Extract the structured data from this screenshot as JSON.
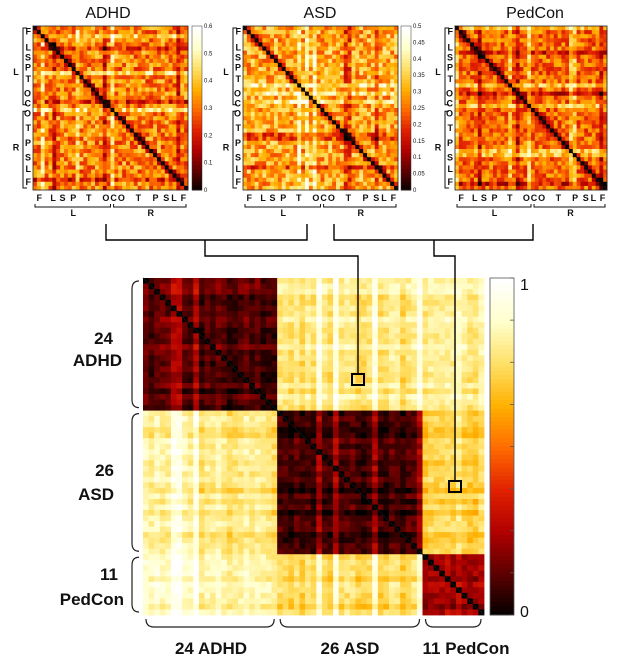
{
  "chart_data": [
    {
      "type": "heatmap",
      "title": "ADHD",
      "row_labels_left": [
        "F",
        "L",
        "S",
        "P",
        "T",
        "O",
        "C",
        "O",
        "T",
        "P",
        "S",
        "L",
        "F"
      ],
      "hemisphere_labels": [
        "L",
        "R"
      ],
      "x_tick_labels": [
        "F",
        "L",
        "S",
        "P",
        "T",
        "O",
        "C",
        "O",
        "T",
        "P",
        "S",
        "L",
        "F"
      ],
      "colorbar_ticks": [
        "0.6",
        "0.5",
        "0.4",
        "0.3",
        "0.2",
        "0.1",
        "0"
      ],
      "vmin": 0,
      "vmax": 0.6
    },
    {
      "type": "heatmap",
      "title": "ASD",
      "row_labels_left": [
        "F",
        "L",
        "S",
        "P",
        "T",
        "O",
        "C",
        "O",
        "T",
        "P",
        "S",
        "L",
        "F"
      ],
      "hemisphere_labels": [
        "L",
        "R"
      ],
      "x_tick_labels": [
        "F",
        "L",
        "S",
        "P",
        "T",
        "O",
        "C",
        "O",
        "T",
        "P",
        "S",
        "L",
        "F"
      ],
      "colorbar_ticks": [
        "0.5",
        "0.45",
        "0.4",
        "0.35",
        "0.3",
        "0.25",
        "0.2",
        "0.15",
        "0.1",
        "0.05",
        "0"
      ],
      "vmin": 0,
      "vmax": 0.5
    },
    {
      "type": "heatmap",
      "title": "PedCon",
      "row_labels_left": [
        "F",
        "L",
        "S",
        "P",
        "T",
        "O",
        "C",
        "O",
        "T",
        "P",
        "S",
        "L",
        "F"
      ],
      "hemisphere_labels": [
        "L",
        "R"
      ],
      "x_tick_labels": [
        "F",
        "L",
        "S",
        "P",
        "T",
        "O",
        "C",
        "O",
        "T",
        "P",
        "S",
        "L",
        "F"
      ],
      "colorbar_ticks": [],
      "vmin": 0,
      "vmax": 1
    },
    {
      "type": "heatmap",
      "title": "",
      "groups": [
        {
          "count": "24",
          "name": "ADHD",
          "size": 24
        },
        {
          "count": "26",
          "name": "ASD",
          "size": 26
        },
        {
          "count": "11",
          "name": "PedCon",
          "size": 11
        }
      ],
      "bottom_labels": [
        "24 ADHD",
        "26 ASD",
        "11 PedCon"
      ],
      "left_labels": [
        [
          "24",
          "ADHD"
        ],
        [
          "26",
          "ASD"
        ],
        [
          "11",
          "PedCon"
        ]
      ],
      "block_mean": [
        [
          0.12,
          0.78,
          0.82
        ],
        [
          0.78,
          0.07,
          0.7
        ],
        [
          0.82,
          0.7,
          0.22
        ]
      ],
      "colorbar_ticks": [
        "1",
        "0"
      ],
      "vmin": 0,
      "vmax": 1
    }
  ],
  "colormap": [
    "#000000",
    "#5a0000",
    "#b00000",
    "#e02000",
    "#ff6a00",
    "#ffb000",
    "#ffe066",
    "#ffffcc",
    "#ffffff"
  ]
}
